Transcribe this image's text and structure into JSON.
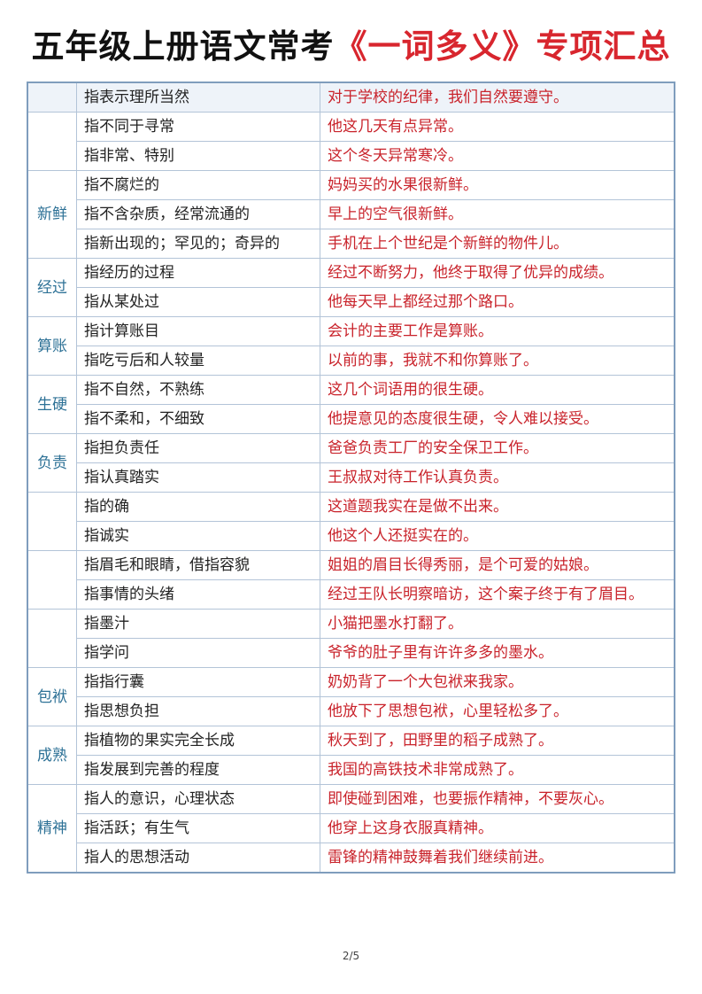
{
  "title": {
    "black": "五年级上册语文常考",
    "red": "《一词多义》专项汇总"
  },
  "groups": [
    {
      "word": "",
      "rows": [
        {
          "meaning": "指表示理所当然",
          "example": "对于学校的纪律，我们自然要遵守。"
        }
      ]
    },
    {
      "word": "",
      "rows": [
        {
          "meaning": "指不同于寻常",
          "example": "他这几天有点异常。"
        },
        {
          "meaning": "指非常、特别",
          "example": "这个冬天异常寒冷。"
        }
      ]
    },
    {
      "word": "新鲜",
      "rows": [
        {
          "meaning": "指不腐烂的",
          "example": "妈妈买的水果很新鲜。"
        },
        {
          "meaning": "指不含杂质，经常流通的",
          "example": "早上的空气很新鲜。"
        },
        {
          "meaning": "指新出现的；罕见的；奇异的",
          "example": "手机在上个世纪是个新鲜的物件儿。"
        }
      ]
    },
    {
      "word": "经过",
      "rows": [
        {
          "meaning": "指经历的过程",
          "example": "经过不断努力，他终于取得了优异的成绩。"
        },
        {
          "meaning": "指从某处过",
          "example": "他每天早上都经过那个路口。"
        }
      ]
    },
    {
      "word": "算账",
      "rows": [
        {
          "meaning": "指计算账目",
          "example": "会计的主要工作是算账。"
        },
        {
          "meaning": "指吃亏后和人较量",
          "example": "以前的事，我就不和你算账了。"
        }
      ]
    },
    {
      "word": "生硬",
      "rows": [
        {
          "meaning": "指不自然，不熟练",
          "example": "这几个词语用的很生硬。"
        },
        {
          "meaning": "指不柔和，不细致",
          "example": "他提意见的态度很生硬，令人难以接受。"
        }
      ]
    },
    {
      "word": "负责",
      "rows": [
        {
          "meaning": "指担负责任",
          "example": "爸爸负责工厂的安全保卫工作。"
        },
        {
          "meaning": "指认真踏实",
          "example": "王叔叔对待工作认真负责。"
        }
      ]
    },
    {
      "word": "",
      "rows": [
        {
          "meaning": "指的确",
          "example": "这道题我实在是做不出来。"
        },
        {
          "meaning": "指诚实",
          "example": "他这个人还挺实在的。"
        }
      ]
    },
    {
      "word": "",
      "rows": [
        {
          "meaning": "指眉毛和眼睛，借指容貌",
          "example": "姐姐的眉目长得秀丽，是个可爱的姑娘。"
        },
        {
          "meaning": "指事情的头绪",
          "example": "经过王队长明察暗访，这个案子终于有了眉目。"
        }
      ]
    },
    {
      "word": "",
      "rows": [
        {
          "meaning": "指墨汁",
          "example": "小猫把墨水打翻了。"
        },
        {
          "meaning": "指学问",
          "example": "爷爷的肚子里有许许多多的墨水。"
        }
      ]
    },
    {
      "word": "包袱",
      "rows": [
        {
          "meaning": "指指行囊",
          "example": "奶奶背了一个大包袱来我家。"
        },
        {
          "meaning": "指思想负担",
          "example": "他放下了思想包袱，心里轻松多了。"
        }
      ]
    },
    {
      "word": "成熟",
      "rows": [
        {
          "meaning": "指植物的果实完全长成",
          "example": "秋天到了，田野里的稻子成熟了。"
        },
        {
          "meaning": "指发展到完善的程度",
          "example": "我国的高铁技术非常成熟了。"
        }
      ]
    },
    {
      "word": "精神",
      "rows": [
        {
          "meaning": "指人的意识，心理状态",
          "example": "即使碰到困难，也要振作精神，不要灰心。"
        },
        {
          "meaning": "指活跃；有生气",
          "example": "他穿上这身衣服真精神。"
        },
        {
          "meaning": "指人的思想活动",
          "example": "雷锋的精神鼓舞着我们继续前进。"
        }
      ]
    }
  ],
  "footer": {
    "page": "2/5"
  },
  "colors": {
    "word": "#2d7196",
    "example": "#c9232b",
    "title_red": "#d8262e"
  }
}
